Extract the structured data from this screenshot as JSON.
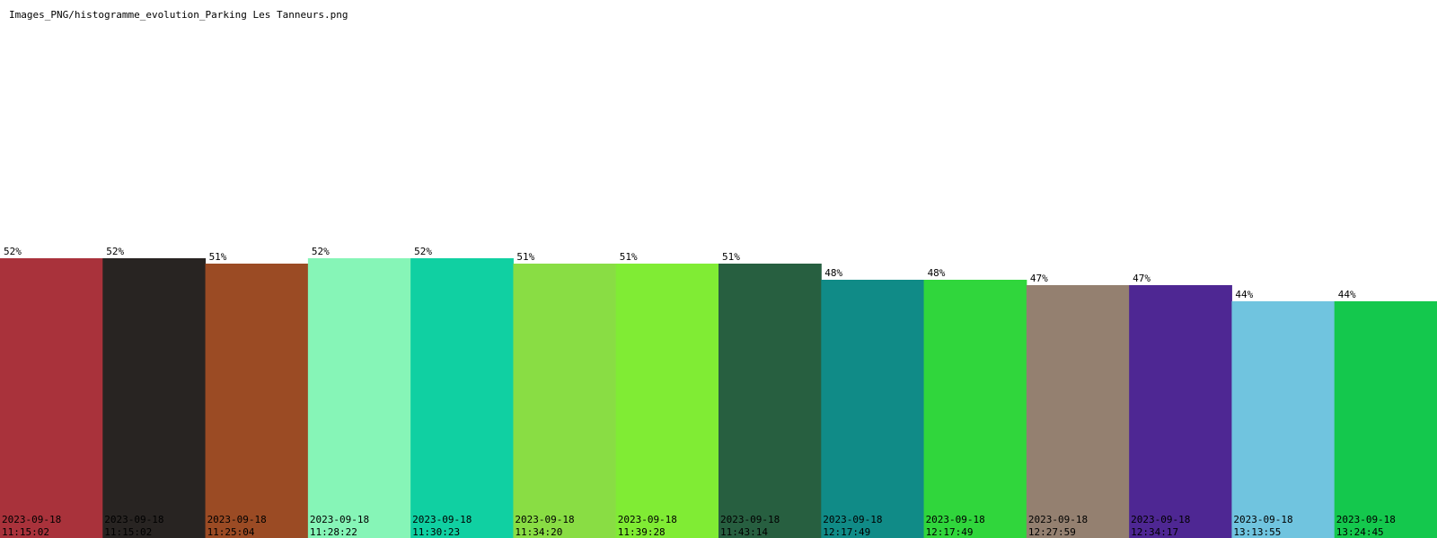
{
  "title": "Images_PNG/histogramme_evolution_Parking Les Tanneurs.png",
  "chart_data": {
    "type": "bar",
    "ylim": [
      0,
      100
    ],
    "grid": false,
    "legend": "none",
    "value_labels": [
      "52%",
      "52%",
      "51%",
      "52%",
      "52%",
      "51%",
      "51%",
      "51%",
      "48%",
      "48%",
      "47%",
      "47%",
      "44%",
      "44%"
    ],
    "values": [
      52,
      52,
      51,
      52,
      52,
      51,
      51,
      51,
      48,
      48,
      47,
      47,
      44,
      44
    ],
    "dates": [
      "2023-09-18",
      "2023-09-18",
      "2023-09-18",
      "2023-09-18",
      "2023-09-18",
      "2023-09-18",
      "2023-09-18",
      "2023-09-18",
      "2023-09-18",
      "2023-09-18",
      "2023-09-18",
      "2023-09-18",
      "2023-09-18",
      "2023-09-18"
    ],
    "times": [
      "11:15:02",
      "11:15:02",
      "11:25:04",
      "11:28:22",
      "11:30:23",
      "11:34:20",
      "11:39:28",
      "11:43:14",
      "12:17:49",
      "12:17:49",
      "12:27:59",
      "12:34:17",
      "13:13:55",
      "13:24:45"
    ],
    "colors": [
      "#a9323b",
      "#282422",
      "#9b4b24",
      "#86f5b7",
      "#10d0a2",
      "#89dd44",
      "#80ec34",
      "#275f40",
      "#108b87",
      "#30d63c",
      "#948070",
      "#4e2793",
      "#70c4df",
      "#14c84d"
    ]
  }
}
